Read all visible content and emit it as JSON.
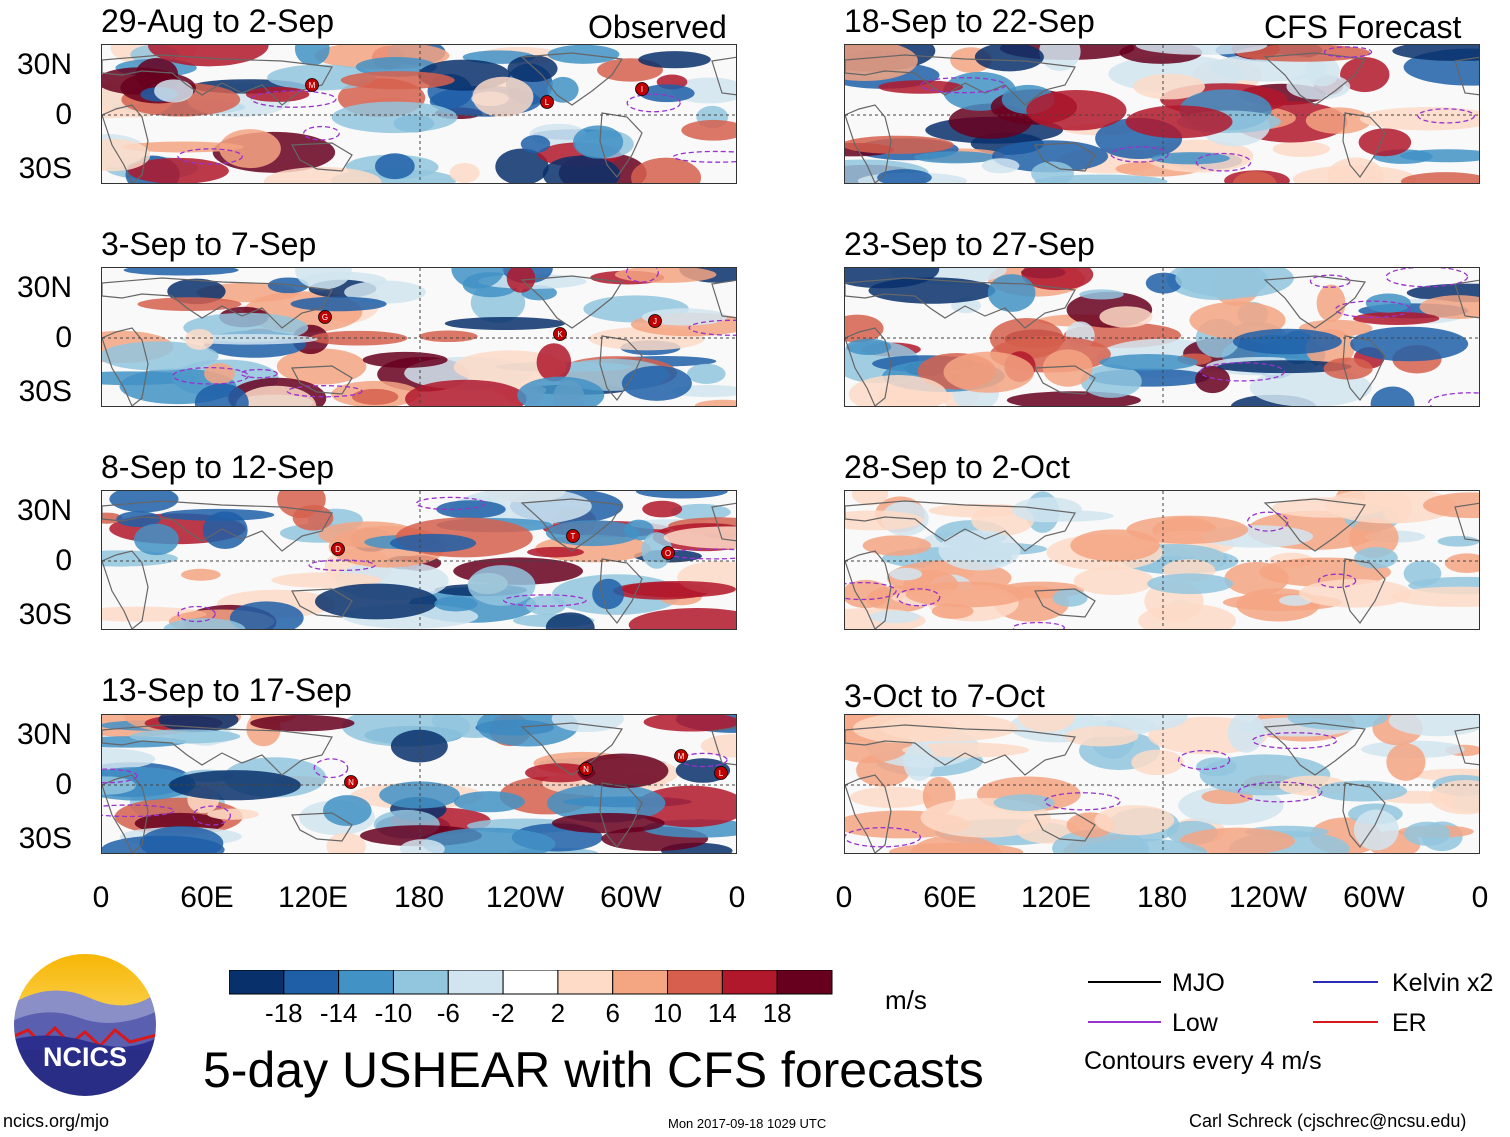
{
  "figure": {
    "title": "5-day USHEAR with CFS forecasts",
    "units": "m/s",
    "footer_left": "ncics.org/mjo",
    "footer_center": "Mon 2017-09-18 1029 UTC",
    "footer_right": "Carl Schreck (cjschrec@ncsu.edu)",
    "logo_text": "NCICS"
  },
  "columns": {
    "left_tag": "Observed",
    "right_tag": "CFS Forecast"
  },
  "panels_left": [
    {
      "title": "29-Aug to 2-Sep"
    },
    {
      "title": "3-Sep to 7-Sep"
    },
    {
      "title": "8-Sep to 12-Sep"
    },
    {
      "title": "13-Sep to 17-Sep"
    }
  ],
  "panels_right": [
    {
      "title": "18-Sep to 22-Sep"
    },
    {
      "title": "23-Sep to 27-Sep"
    },
    {
      "title": "28-Sep to 2-Oct"
    },
    {
      "title": "3-Oct to 7-Oct"
    }
  ],
  "lat_ticks": [
    "30N",
    "0",
    "30S"
  ],
  "lon_ticks": [
    "0",
    "60E",
    "120E",
    "180",
    "120W",
    "60W",
    "0"
  ],
  "storm_markers": [
    {
      "panel": 0,
      "letter": "M"
    },
    {
      "panel": 0,
      "letter": "L"
    },
    {
      "panel": 0,
      "letter": "I"
    },
    {
      "panel": 1,
      "letter": "G"
    },
    {
      "panel": 1,
      "letter": "K"
    },
    {
      "panel": 1,
      "letter": "J"
    },
    {
      "panel": 2,
      "letter": "D"
    },
    {
      "panel": 2,
      "letter": "T"
    },
    {
      "panel": 2,
      "letter": "O"
    },
    {
      "panel": 3,
      "letter": "N"
    },
    {
      "panel": 3,
      "letter": "N"
    },
    {
      "panel": 3,
      "letter": "M"
    },
    {
      "panel": 3,
      "letter": "L"
    }
  ],
  "colorbar": {
    "labels": [
      "-18",
      "-14",
      "-10",
      "-6",
      "-2",
      "2",
      "6",
      "10",
      "14",
      "18"
    ],
    "colors": [
      "#08306b",
      "#1f5fa8",
      "#4292c6",
      "#92c5de",
      "#d1e5f0",
      "#ffffff",
      "#fddbc7",
      "#f4a582",
      "#d6604d",
      "#b2182b",
      "#67001f"
    ]
  },
  "legend": {
    "items": [
      {
        "label": "MJO",
        "color": "#000000"
      },
      {
        "label": "Kelvin x2",
        "color": "#2b2bb5"
      },
      {
        "label": "Low",
        "color": "#9932cc"
      },
      {
        "label": "ER",
        "color": "#d7191c"
      }
    ],
    "note": "Contours every 4 m/s"
  },
  "chart_data": {
    "type": "heatmap",
    "title": "5-day USHEAR with CFS forecasts",
    "variable": "USHEAR",
    "units": "m/s",
    "x_axis": {
      "ticks": [
        "0",
        "60E",
        "120E",
        "180",
        "120W",
        "60W",
        "0"
      ],
      "range_deg": [
        0,
        360
      ]
    },
    "y_axis": {
      "ticks": [
        "30N",
        "0",
        "30S"
      ],
      "range_deg": [
        -40,
        40
      ]
    },
    "color_levels": [
      -18,
      -14,
      -10,
      -6,
      -2,
      2,
      6,
      10,
      14,
      18
    ],
    "contour_interval": 4,
    "observed_periods": [
      "29-Aug to 2-Sep",
      "3-Sep to 7-Sep",
      "8-Sep to 12-Sep",
      "13-Sep to 17-Sep"
    ],
    "forecast_periods": [
      "18-Sep to 22-Sep",
      "23-Sep to 27-Sep",
      "28-Sep to 2-Oct",
      "3-Oct to 7-Oct"
    ]
  }
}
